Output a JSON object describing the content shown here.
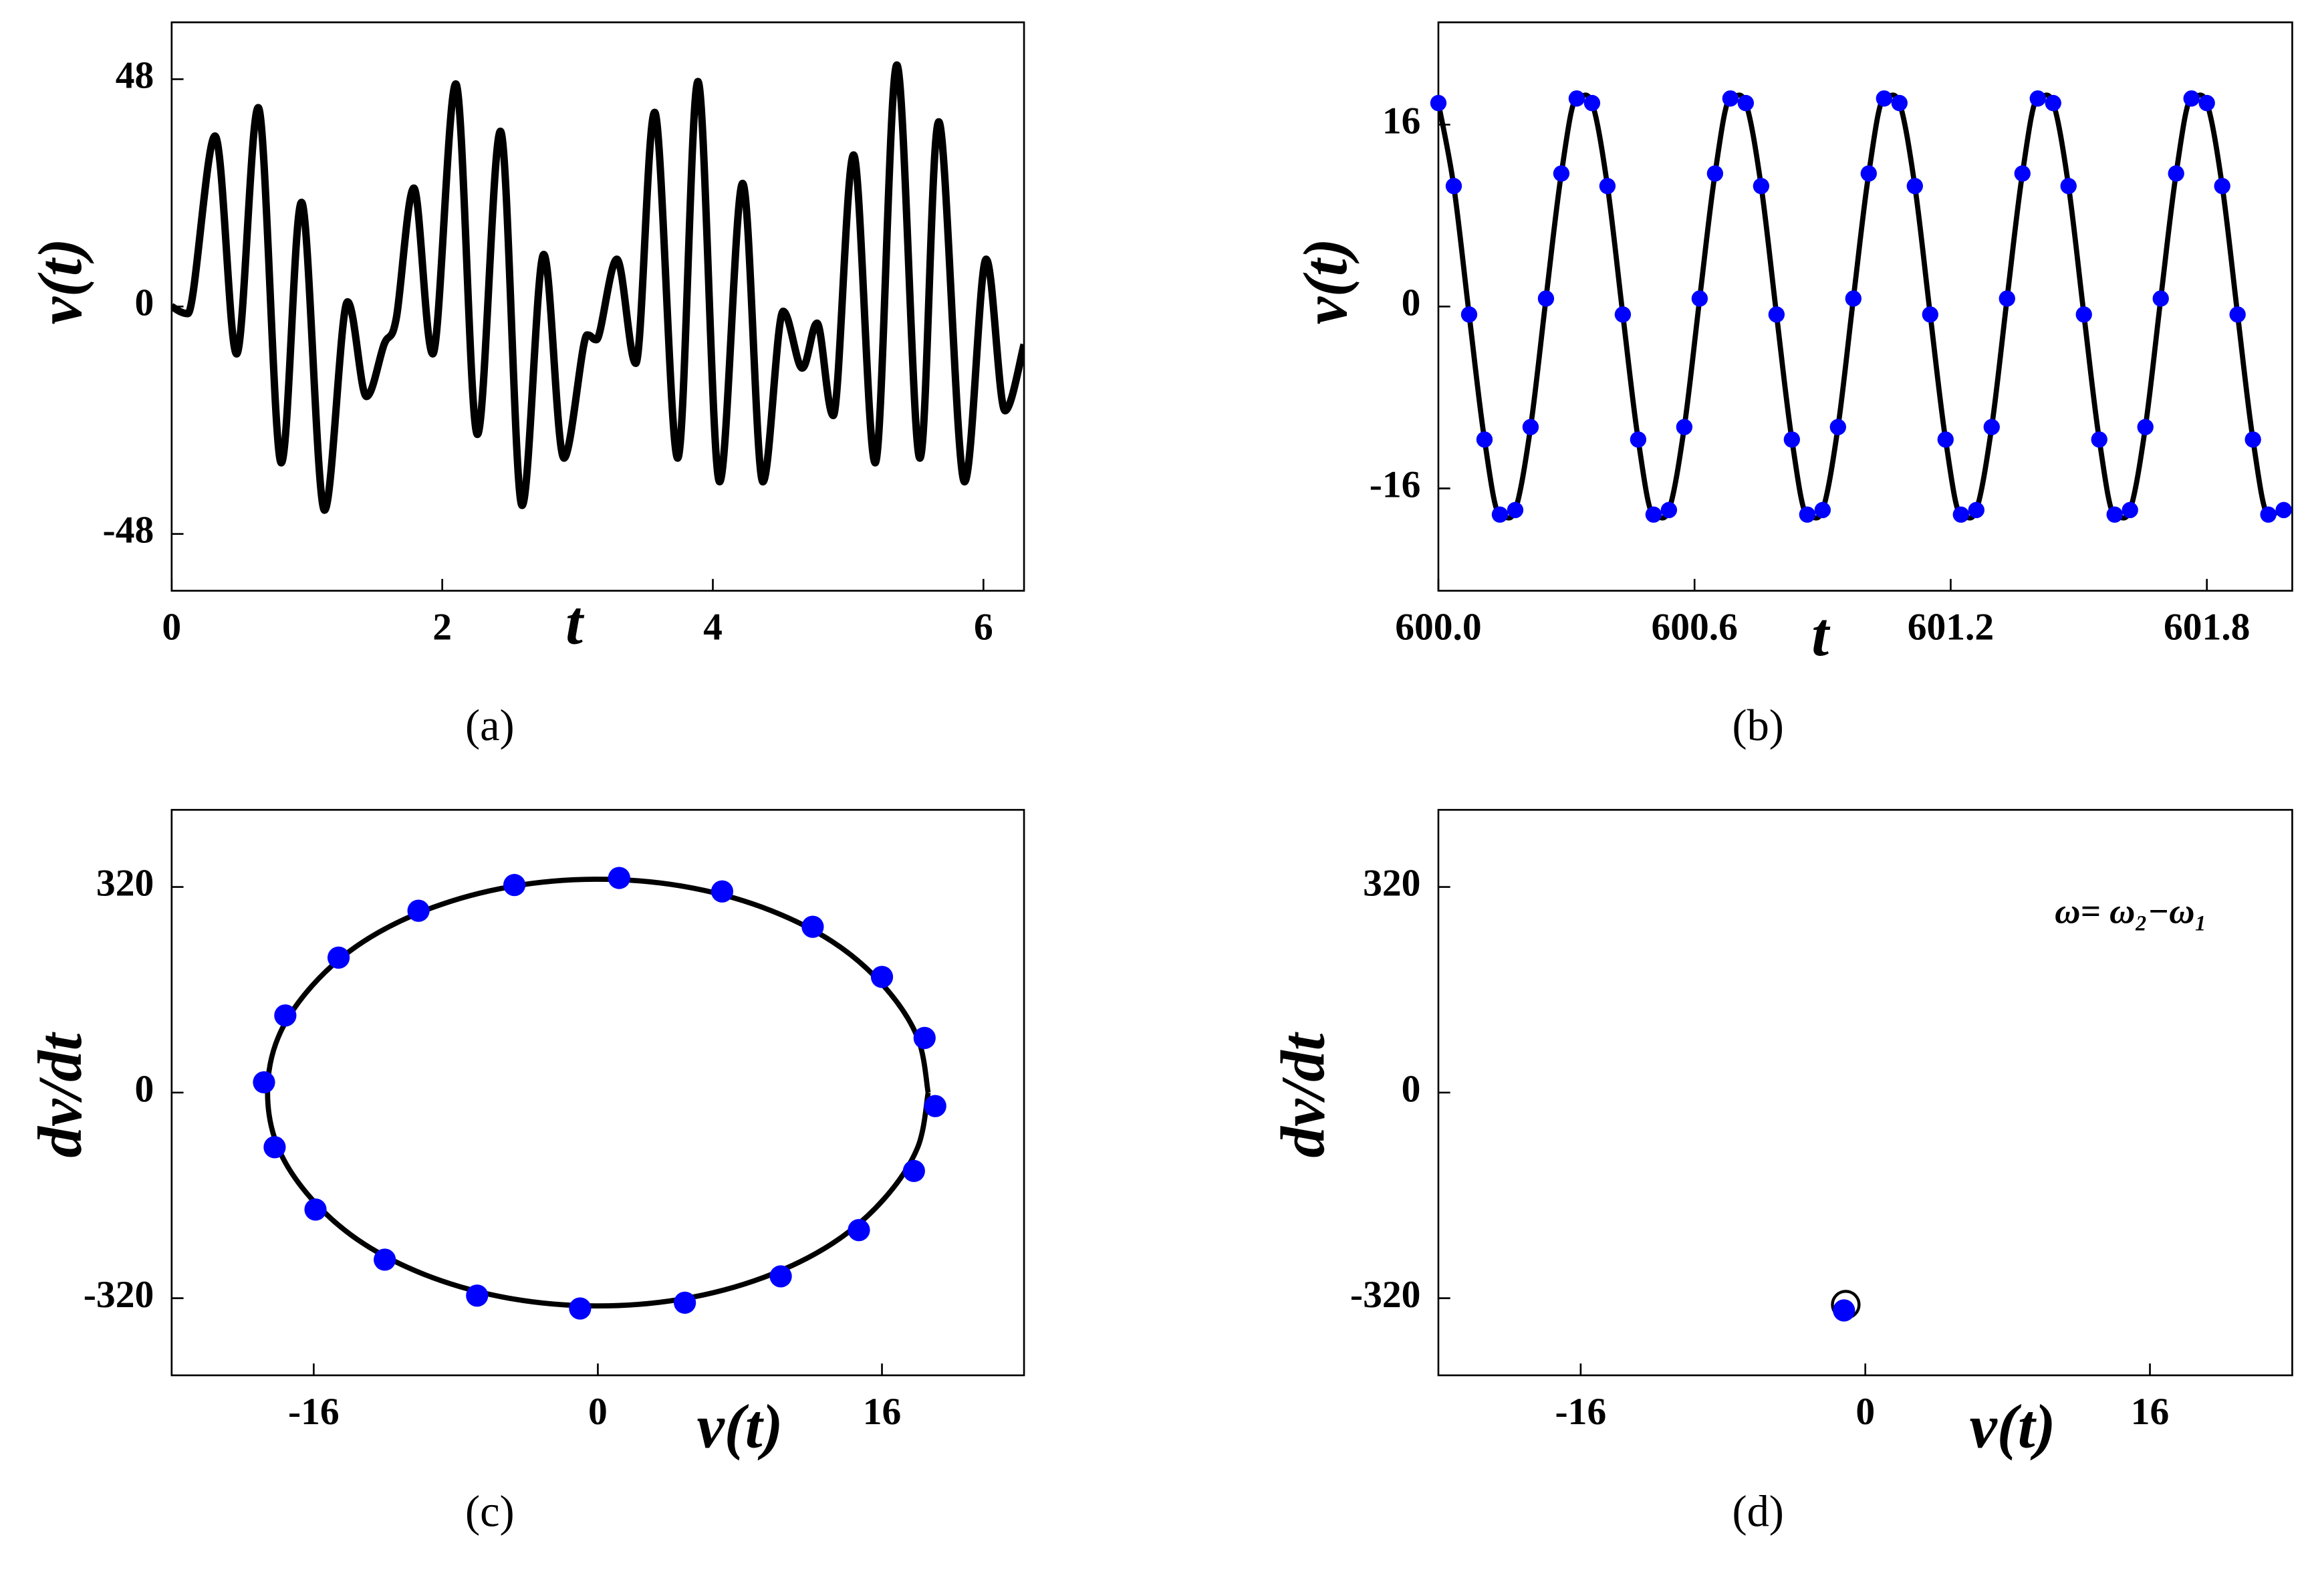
{
  "chart_data": [
    {
      "type": "line",
      "label": "(a)",
      "x_label": "t",
      "y_label": "v(t)",
      "xlim": [
        0,
        6.3
      ],
      "ylim": [
        -60,
        60
      ],
      "xticks": [
        0,
        2,
        4,
        6
      ],
      "yticks": [
        -48,
        0,
        48
      ],
      "series": [
        {
          "style": "line",
          "color": "#000000",
          "x": [
            0,
            0.12,
            0.32,
            0.48,
            0.64,
            0.81,
            0.96,
            1.13,
            1.3,
            1.44,
            1.57,
            1.66,
            1.79,
            1.93,
            2.1,
            2.26,
            2.43,
            2.59,
            2.75,
            2.9,
            3.07,
            3.14,
            3.29,
            3.43,
            3.57,
            3.74,
            3.89,
            4.05,
            4.22,
            4.37,
            4.52,
            4.66,
            4.77,
            4.89,
            5.04,
            5.2,
            5.36,
            5.53,
            5.67,
            5.86,
            6.02,
            6.16,
            6.3
          ],
          "values": [
            0,
            -1.5,
            36,
            -10,
            42,
            -33,
            22,
            -43,
            1,
            -19,
            -8,
            -2.5,
            25,
            -10,
            47,
            -27,
            37,
            -42,
            11,
            -32,
            -6,
            -7,
            10,
            -12,
            41,
            -32,
            47.5,
            -37,
            26,
            -37,
            -1,
            -13,
            -3.5,
            -23,
            32,
            -33,
            51,
            -32,
            39,
            -37,
            10,
            -22,
            -8
          ]
        }
      ]
    },
    {
      "type": "line",
      "label": "(b)",
      "x_label": "t",
      "y_label": "v(t)",
      "xlim": [
        600,
        602
      ],
      "ylim": [
        -25,
        25
      ],
      "xticks": [
        {
          "value": 600,
          "label": "600.0"
        },
        600.6,
        601.2,
        601.8
      ],
      "yticks": [
        -16,
        0,
        16
      ],
      "series": [
        {
          "style": "line",
          "color": "#000000",
          "x": [
            600,
            600.036,
            600.072,
            600.108,
            600.144,
            600.18,
            600.216,
            600.252,
            600.288,
            600.324,
            600.36,
            600.396,
            600.432,
            600.468,
            600.504,
            600.54,
            600.576,
            600.612,
            600.648,
            600.684,
            600.72,
            600.756,
            600.792,
            600.828,
            600.864,
            600.9,
            600.936,
            600.972,
            601.008,
            601.044,
            601.08,
            601.116,
            601.152,
            601.188,
            601.224,
            601.26,
            601.296,
            601.332,
            601.368,
            601.404,
            601.44,
            601.476,
            601.512,
            601.548,
            601.584,
            601.62,
            601.656,
            601.692,
            601.728,
            601.764,
            601.8,
            601.836,
            601.872,
            601.908,
            601.944,
            601.98
          ],
          "values": [
            17.9,
            10.6,
            -0.7,
            -11.7,
            -18.3,
            -17.9,
            -10.6,
            0.7,
            11.7,
            18.3,
            17.9,
            10.6,
            -0.7,
            -11.7,
            -18.3,
            -17.9,
            -10.6,
            0.7,
            11.7,
            18.3,
            17.9,
            10.6,
            -0.7,
            -11.7,
            -18.3,
            -17.9,
            -10.6,
            0.7,
            11.7,
            18.3,
            17.9,
            10.6,
            -0.7,
            -11.7,
            -18.3,
            -17.9,
            -10.6,
            0.7,
            11.7,
            18.3,
            17.9,
            10.6,
            -0.7,
            -11.7,
            -18.3,
            -17.9,
            -10.6,
            0.7,
            11.7,
            18.3,
            17.9,
            10.6,
            -0.7,
            -11.7,
            -18.3,
            -17.9
          ]
        },
        {
          "style": "dots",
          "color": "#0000ff",
          "x": [
            600,
            600.036,
            600.072,
            600.108,
            600.144,
            600.18,
            600.216,
            600.252,
            600.288,
            600.324,
            600.36,
            600.396,
            600.432,
            600.468,
            600.504,
            600.54,
            600.576,
            600.612,
            600.648,
            600.684,
            600.72,
            600.756,
            600.792,
            600.828,
            600.864,
            600.9,
            600.936,
            600.972,
            601.008,
            601.044,
            601.08,
            601.116,
            601.152,
            601.188,
            601.224,
            601.26,
            601.296,
            601.332,
            601.368,
            601.404,
            601.44,
            601.476,
            601.512,
            601.548,
            601.584,
            601.62,
            601.656,
            601.692,
            601.728,
            601.764,
            601.8,
            601.836,
            601.872,
            601.908,
            601.944,
            601.98
          ],
          "values": [
            17.9,
            10.6,
            -0.7,
            -11.7,
            -18.3,
            -17.9,
            -10.6,
            0.7,
            11.7,
            18.3,
            17.9,
            10.6,
            -0.7,
            -11.7,
            -18.3,
            -17.9,
            -10.6,
            0.7,
            11.7,
            18.3,
            17.9,
            10.6,
            -0.7,
            -11.7,
            -18.3,
            -17.9,
            -10.6,
            0.7,
            11.7,
            18.3,
            17.9,
            10.6,
            -0.7,
            -11.7,
            -18.3,
            -17.9,
            -10.6,
            0.7,
            11.7,
            18.3,
            17.9,
            10.6,
            -0.7,
            -11.7,
            -18.3,
            -17.9,
            -10.6,
            0.7,
            11.7,
            18.3,
            17.9,
            10.6,
            -0.7,
            -11.7,
            -18.3,
            -17.9
          ]
        }
      ]
    },
    {
      "type": "line",
      "label": "(c)",
      "x_label": "v(t)",
      "y_label": "dv/dt",
      "xlim": [
        -24,
        24
      ],
      "ylim": [
        -440,
        440
      ],
      "xticks": [
        -16,
        0,
        16
      ],
      "yticks": [
        -320,
        0,
        320
      ],
      "series": [
        {
          "style": "line",
          "color": "#000000",
          "x": [
            18.6,
            18.0,
            16.1,
            13.2,
            9.3,
            4.8,
            0,
            -4.8,
            -9.3,
            -13.2,
            -16.1,
            -18.0,
            -18.6,
            -18.0,
            -16.1,
            -13.2,
            -9.3,
            -4.8,
            0,
            4.8,
            9.3,
            13.2,
            16.1,
            18.0,
            18.6
          ],
          "values": [
            0,
            86,
            166,
            235,
            288,
            321,
            332,
            321,
            288,
            235,
            166,
            86,
            0,
            -86,
            -166,
            -235,
            -288,
            -321,
            -332,
            -321,
            -288,
            -235,
            -166,
            -86,
            0
          ]
        },
        {
          "style": "dots",
          "color": "#0000ff",
          "x": [
            1.2,
            7.0,
            12.1,
            16.0,
            18.4,
            19.0,
            17.8,
            14.7,
            10.3,
            4.9,
            -1.0,
            -6.8,
            -12.0,
            -15.9,
            -18.2,
            -18.8,
            -17.6,
            -14.6,
            -10.1,
            -4.7
          ],
          "values": [
            334,
            313,
            258,
            180,
            85,
            -21,
            -122,
            -214,
            -286,
            -327,
            -336,
            -316,
            -260,
            -182,
            -85,
            16,
            120,
            210,
            283,
            323
          ]
        }
      ]
    },
    {
      "type": "line",
      "label": "(d)",
      "x_label": "v(t)",
      "y_label": "dv/dt",
      "annotation": "ω= ω₂−ω₁",
      "xlim": [
        -24,
        24
      ],
      "ylim": [
        -440,
        440
      ],
      "xticks": [
        -16,
        0,
        16
      ],
      "yticks": [
        -320,
        0,
        320
      ],
      "series": [
        {
          "style": "ring",
          "color": "#000000",
          "x": [
            -1.1
          ],
          "values": [
            -330
          ]
        },
        {
          "style": "dots",
          "color": "#0000ff",
          "x": [
            -1.2
          ],
          "values": [
            -339
          ]
        }
      ]
    }
  ]
}
